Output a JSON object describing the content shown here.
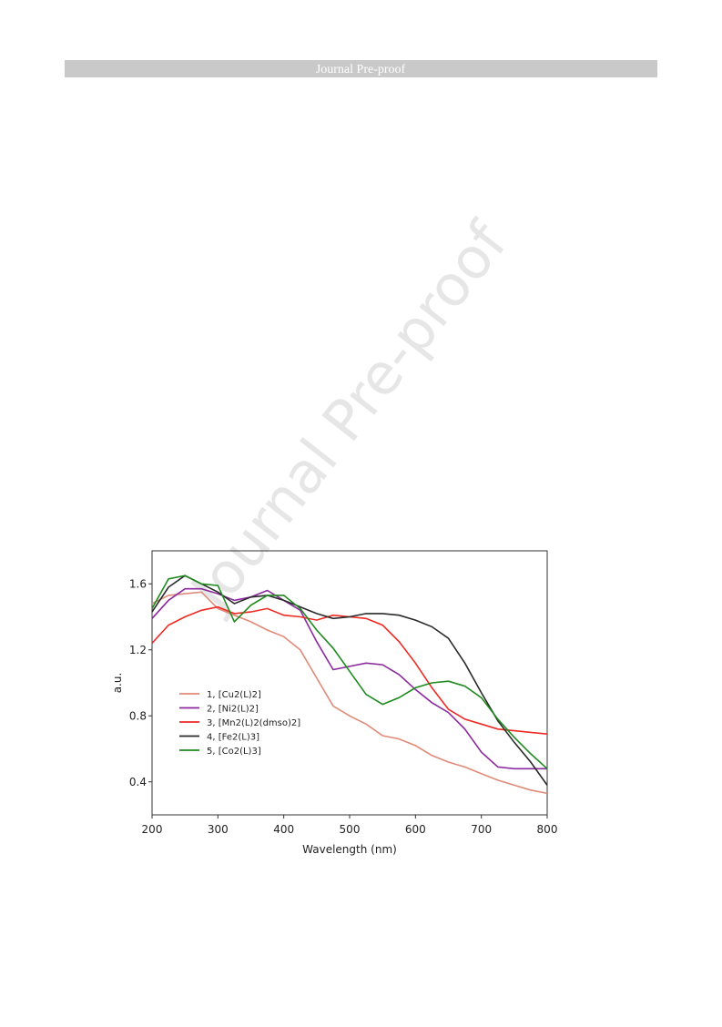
{
  "header": {
    "title": "Journal Pre-proof"
  },
  "watermark": "Journal Pre-proof",
  "chart_data": {
    "type": "line",
    "x_label": "Wavelength (nm)",
    "y_label": "a.u.",
    "x": [
      200,
      225,
      250,
      275,
      300,
      325,
      350,
      375,
      400,
      425,
      450,
      475,
      500,
      525,
      550,
      575,
      600,
      625,
      650,
      675,
      700,
      725,
      750,
      775,
      800
    ],
    "series": [
      {
        "name": "1, [Cu2(L)2]",
        "color": "#e08a78",
        "values": [
          1.48,
          1.53,
          1.54,
          1.55,
          1.45,
          1.41,
          1.37,
          1.32,
          1.28,
          1.2,
          1.03,
          0.86,
          0.8,
          0.75,
          0.68,
          0.66,
          0.62,
          0.56,
          0.52,
          0.49,
          0.45,
          0.41,
          0.38,
          0.35,
          0.33
        ]
      },
      {
        "name": "2, [Ni2(L)2]",
        "color": "#8b2a9e",
        "values": [
          1.39,
          1.5,
          1.57,
          1.57,
          1.54,
          1.5,
          1.52,
          1.56,
          1.5,
          1.44,
          1.25,
          1.08,
          1.1,
          1.12,
          1.11,
          1.05,
          0.96,
          0.88,
          0.82,
          0.72,
          0.58,
          0.49,
          0.48,
          0.48,
          0.48
        ]
      },
      {
        "name": "3, [Mn2(L)2(dmso)2]",
        "color": "#ee2a24",
        "values": [
          1.24,
          1.35,
          1.4,
          1.44,
          1.46,
          1.42,
          1.43,
          1.45,
          1.41,
          1.4,
          1.38,
          1.41,
          1.4,
          1.39,
          1.35,
          1.25,
          1.12,
          0.97,
          0.84,
          0.78,
          0.75,
          0.72,
          0.71,
          0.7,
          0.69
        ]
      },
      {
        "name": "4, [Fe2(L)3]",
        "color": "#2a2a2a",
        "values": [
          1.43,
          1.58,
          1.65,
          1.6,
          1.55,
          1.48,
          1.52,
          1.53,
          1.5,
          1.46,
          1.42,
          1.39,
          1.4,
          1.42,
          1.42,
          1.41,
          1.38,
          1.34,
          1.27,
          1.12,
          0.94,
          0.77,
          0.64,
          0.52,
          0.38
        ]
      },
      {
        "name": "5, [Co2(L)3]",
        "color": "#1f8a1f",
        "values": [
          1.45,
          1.63,
          1.65,
          1.6,
          1.59,
          1.37,
          1.47,
          1.53,
          1.53,
          1.45,
          1.32,
          1.21,
          1.07,
          0.93,
          0.87,
          0.91,
          0.97,
          1.0,
          1.01,
          0.98,
          0.91,
          0.78,
          0.67,
          0.57,
          0.48
        ]
      }
    ],
    "xlim": [
      200,
      800
    ],
    "xticks": [
      200,
      300,
      400,
      500,
      600,
      700,
      800
    ],
    "ylim": [
      0.2,
      1.8
    ],
    "yticks": [
      0.4,
      0.8,
      1.2,
      1.6
    ],
    "legend": "lower-left",
    "grid": false
  }
}
